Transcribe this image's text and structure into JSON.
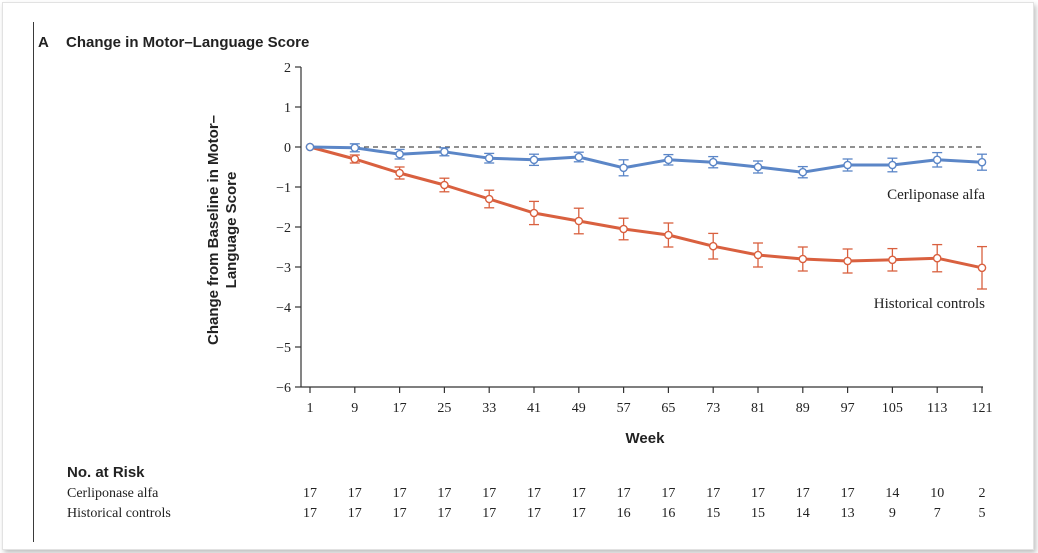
{
  "panel": {
    "letter": "A",
    "title": "Change in Motor–Language Score"
  },
  "chart_data": {
    "type": "line",
    "title": "Change in Motor–Language Score",
    "xlabel": "Week",
    "ylabel_lines": [
      "Change from Baseline in Motor–",
      "Language Score"
    ],
    "x": [
      1,
      9,
      17,
      25,
      33,
      41,
      49,
      57,
      65,
      73,
      81,
      89,
      97,
      105,
      113,
      121
    ],
    "xlim": [
      1,
      121
    ],
    "ylim": [
      -6,
      2
    ],
    "yticks": [
      2,
      1,
      0,
      -1,
      -2,
      -3,
      -4,
      -5,
      -6
    ],
    "ytick_labels": [
      "2",
      "1",
      "0",
      "−1",
      "−2",
      "−3",
      "−4",
      "−5",
      "−6"
    ],
    "reference_line": 0,
    "grid": false,
    "series": [
      {
        "name": "Cerliponase alfa",
        "color": "#5b86c7",
        "values": [
          0,
          -0.02,
          -0.18,
          -0.12,
          -0.28,
          -0.32,
          -0.25,
          -0.52,
          -0.32,
          -0.38,
          -0.5,
          -0.63,
          -0.45,
          -0.45,
          -0.32,
          -0.38
        ],
        "error_low": [
          0,
          -0.12,
          -0.3,
          -0.22,
          -0.4,
          -0.46,
          -0.37,
          -0.72,
          -0.45,
          -0.52,
          -0.65,
          -0.77,
          -0.6,
          -0.62,
          -0.5,
          -0.58
        ],
        "error_high": [
          0,
          0.08,
          -0.06,
          -0.02,
          -0.16,
          -0.18,
          -0.13,
          -0.32,
          -0.19,
          -0.24,
          -0.35,
          -0.49,
          -0.3,
          -0.28,
          -0.14,
          -0.18
        ]
      },
      {
        "name": "Historical controls",
        "color": "#d9603f",
        "values": [
          0,
          -0.3,
          -0.65,
          -0.95,
          -1.3,
          -1.65,
          -1.85,
          -2.05,
          -2.2,
          -2.48,
          -2.7,
          -2.8,
          -2.85,
          -2.82,
          -2.78,
          -3.02
        ],
        "error_low": [
          0,
          -0.4,
          -0.8,
          -1.12,
          -1.52,
          -1.94,
          -2.17,
          -2.32,
          -2.5,
          -2.8,
          -3.0,
          -3.1,
          -3.15,
          -3.1,
          -3.12,
          -3.55
        ],
        "error_high": [
          0,
          -0.2,
          -0.5,
          -0.78,
          -1.08,
          -1.36,
          -1.53,
          -1.78,
          -1.9,
          -2.16,
          -2.4,
          -2.5,
          -2.55,
          -2.54,
          -2.44,
          -2.49
        ]
      }
    ]
  },
  "at_risk": {
    "title": "No. at Risk",
    "rows": [
      {
        "label": "Cerliponase alfa",
        "values": [
          "17",
          "17",
          "17",
          "17",
          "17",
          "17",
          "17",
          "17",
          "17",
          "17",
          "17",
          "17",
          "17",
          "14",
          "10",
          "2"
        ]
      },
      {
        "label": "Historical controls",
        "values": [
          "17",
          "17",
          "17",
          "17",
          "17",
          "17",
          "17",
          "16",
          "16",
          "15",
          "15",
          "14",
          "13",
          "9",
          "7",
          "5"
        ]
      }
    ]
  }
}
